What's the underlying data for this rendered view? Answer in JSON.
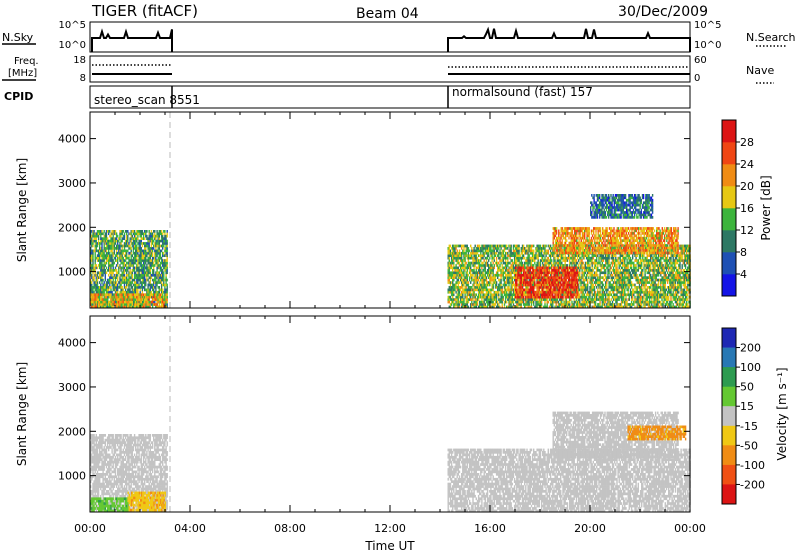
{
  "header": {
    "station": "TIGER (fitACF)",
    "beam": "Beam 04",
    "date": "30/Dec/2009"
  },
  "summary": {
    "nsky_label": "N.Sky",
    "nsky_ticks": [
      "10^5",
      "10^0"
    ],
    "nsearch_label": "N.Search",
    "nsearch_ticks": [
      "10^5",
      "10^0"
    ],
    "freq_label_1": "Freq.",
    "freq_label_2": "[MHz]",
    "freq_ticks": [
      "18",
      "8"
    ],
    "nave_label": "Nave",
    "nave_ticks": [
      "60",
      "0"
    ],
    "cpid_label": "CPID",
    "cpid_segments": [
      {
        "name": "stereo_scan",
        "id": "8551",
        "start": "00:00",
        "end": "03:10"
      },
      {
        "name": "normalsound (fast)",
        "id": "157",
        "start": "14:20",
        "end": "24:00"
      }
    ]
  },
  "axes": {
    "xlabel": "Time UT",
    "xticks": [
      "00:00",
      "04:00",
      "08:00",
      "12:00",
      "16:00",
      "20:00",
      "00:00"
    ],
    "ylabel": "Slant Range [km]",
    "yticks": [
      "1000",
      "2000",
      "3000",
      "4000"
    ]
  },
  "power_colorbar": {
    "label": "Power [dB]",
    "ticks": [
      "4",
      "8",
      "12",
      "16",
      "20",
      "24",
      "28"
    ],
    "colors": [
      "#1414e6",
      "#1e50b4",
      "#2d7864",
      "#3cb43c",
      "#e6c814",
      "#f08c14",
      "#f04614",
      "#dc1414"
    ]
  },
  "velocity_colorbar": {
    "label": "Velocity [m s⁻¹]",
    "ticks": [
      "200",
      "100",
      "50",
      "15",
      "-15",
      "-50",
      "-100",
      "-200"
    ],
    "colors": [
      "#1e28b4",
      "#2878b4",
      "#2d9b50",
      "#64c832",
      "#c3c3c3",
      "#f0c814",
      "#f08c14",
      "#f05014",
      "#dc1414"
    ]
  },
  "chart_data": [
    {
      "type": "heatmap",
      "title": "Power",
      "xlabel": "Time UT",
      "ylabel": "Slant Range [km]",
      "xlim_hours": [
        0,
        24
      ],
      "ylim_km": [
        180,
        4600
      ],
      "colorbar_range_db": [
        0,
        30
      ],
      "regions": [
        {
          "t0": 0.0,
          "t1": 3.1,
          "r0": 180,
          "r1": 1900,
          "level_db": 12
        },
        {
          "t0": 0.0,
          "t1": 3.1,
          "r0": 180,
          "r1": 500,
          "level_db": 18
        },
        {
          "t0": 14.3,
          "t1": 24.0,
          "r0": 180,
          "r1": 1600,
          "level_db": 14
        },
        {
          "t0": 17.0,
          "t1": 19.5,
          "r0": 400,
          "r1": 1100,
          "level_db": 26
        },
        {
          "t0": 18.5,
          "t1": 23.5,
          "r0": 1400,
          "r1": 2000,
          "level_db": 20
        },
        {
          "t0": 20.0,
          "t1": 22.5,
          "r0": 2200,
          "r1": 2700,
          "level_db": 8
        }
      ]
    },
    {
      "type": "heatmap",
      "title": "Velocity",
      "xlabel": "Time UT",
      "ylabel": "Slant Range [km]",
      "xlim_hours": [
        0,
        24
      ],
      "ylim_km": [
        180,
        4600
      ],
      "colorbar_range_ms": [
        -200,
        200
      ],
      "regions": [
        {
          "t0": 0.0,
          "t1": 3.1,
          "r0": 180,
          "r1": 1900,
          "level_ms": 0
        },
        {
          "t0": 1.5,
          "t1": 3.0,
          "r0": 200,
          "r1": 600,
          "level_ms": -40
        },
        {
          "t0": 0.0,
          "t1": 1.5,
          "r0": 180,
          "r1": 500,
          "level_ms": 40
        },
        {
          "t0": 14.3,
          "t1": 24.0,
          "r0": 180,
          "r1": 1600,
          "level_ms": 0
        },
        {
          "t0": 18.5,
          "t1": 23.5,
          "r0": 1400,
          "r1": 2400,
          "level_ms": 0
        },
        {
          "t0": 21.5,
          "t1": 23.8,
          "r0": 1800,
          "r1": 2100,
          "level_ms": -60
        }
      ]
    }
  ]
}
